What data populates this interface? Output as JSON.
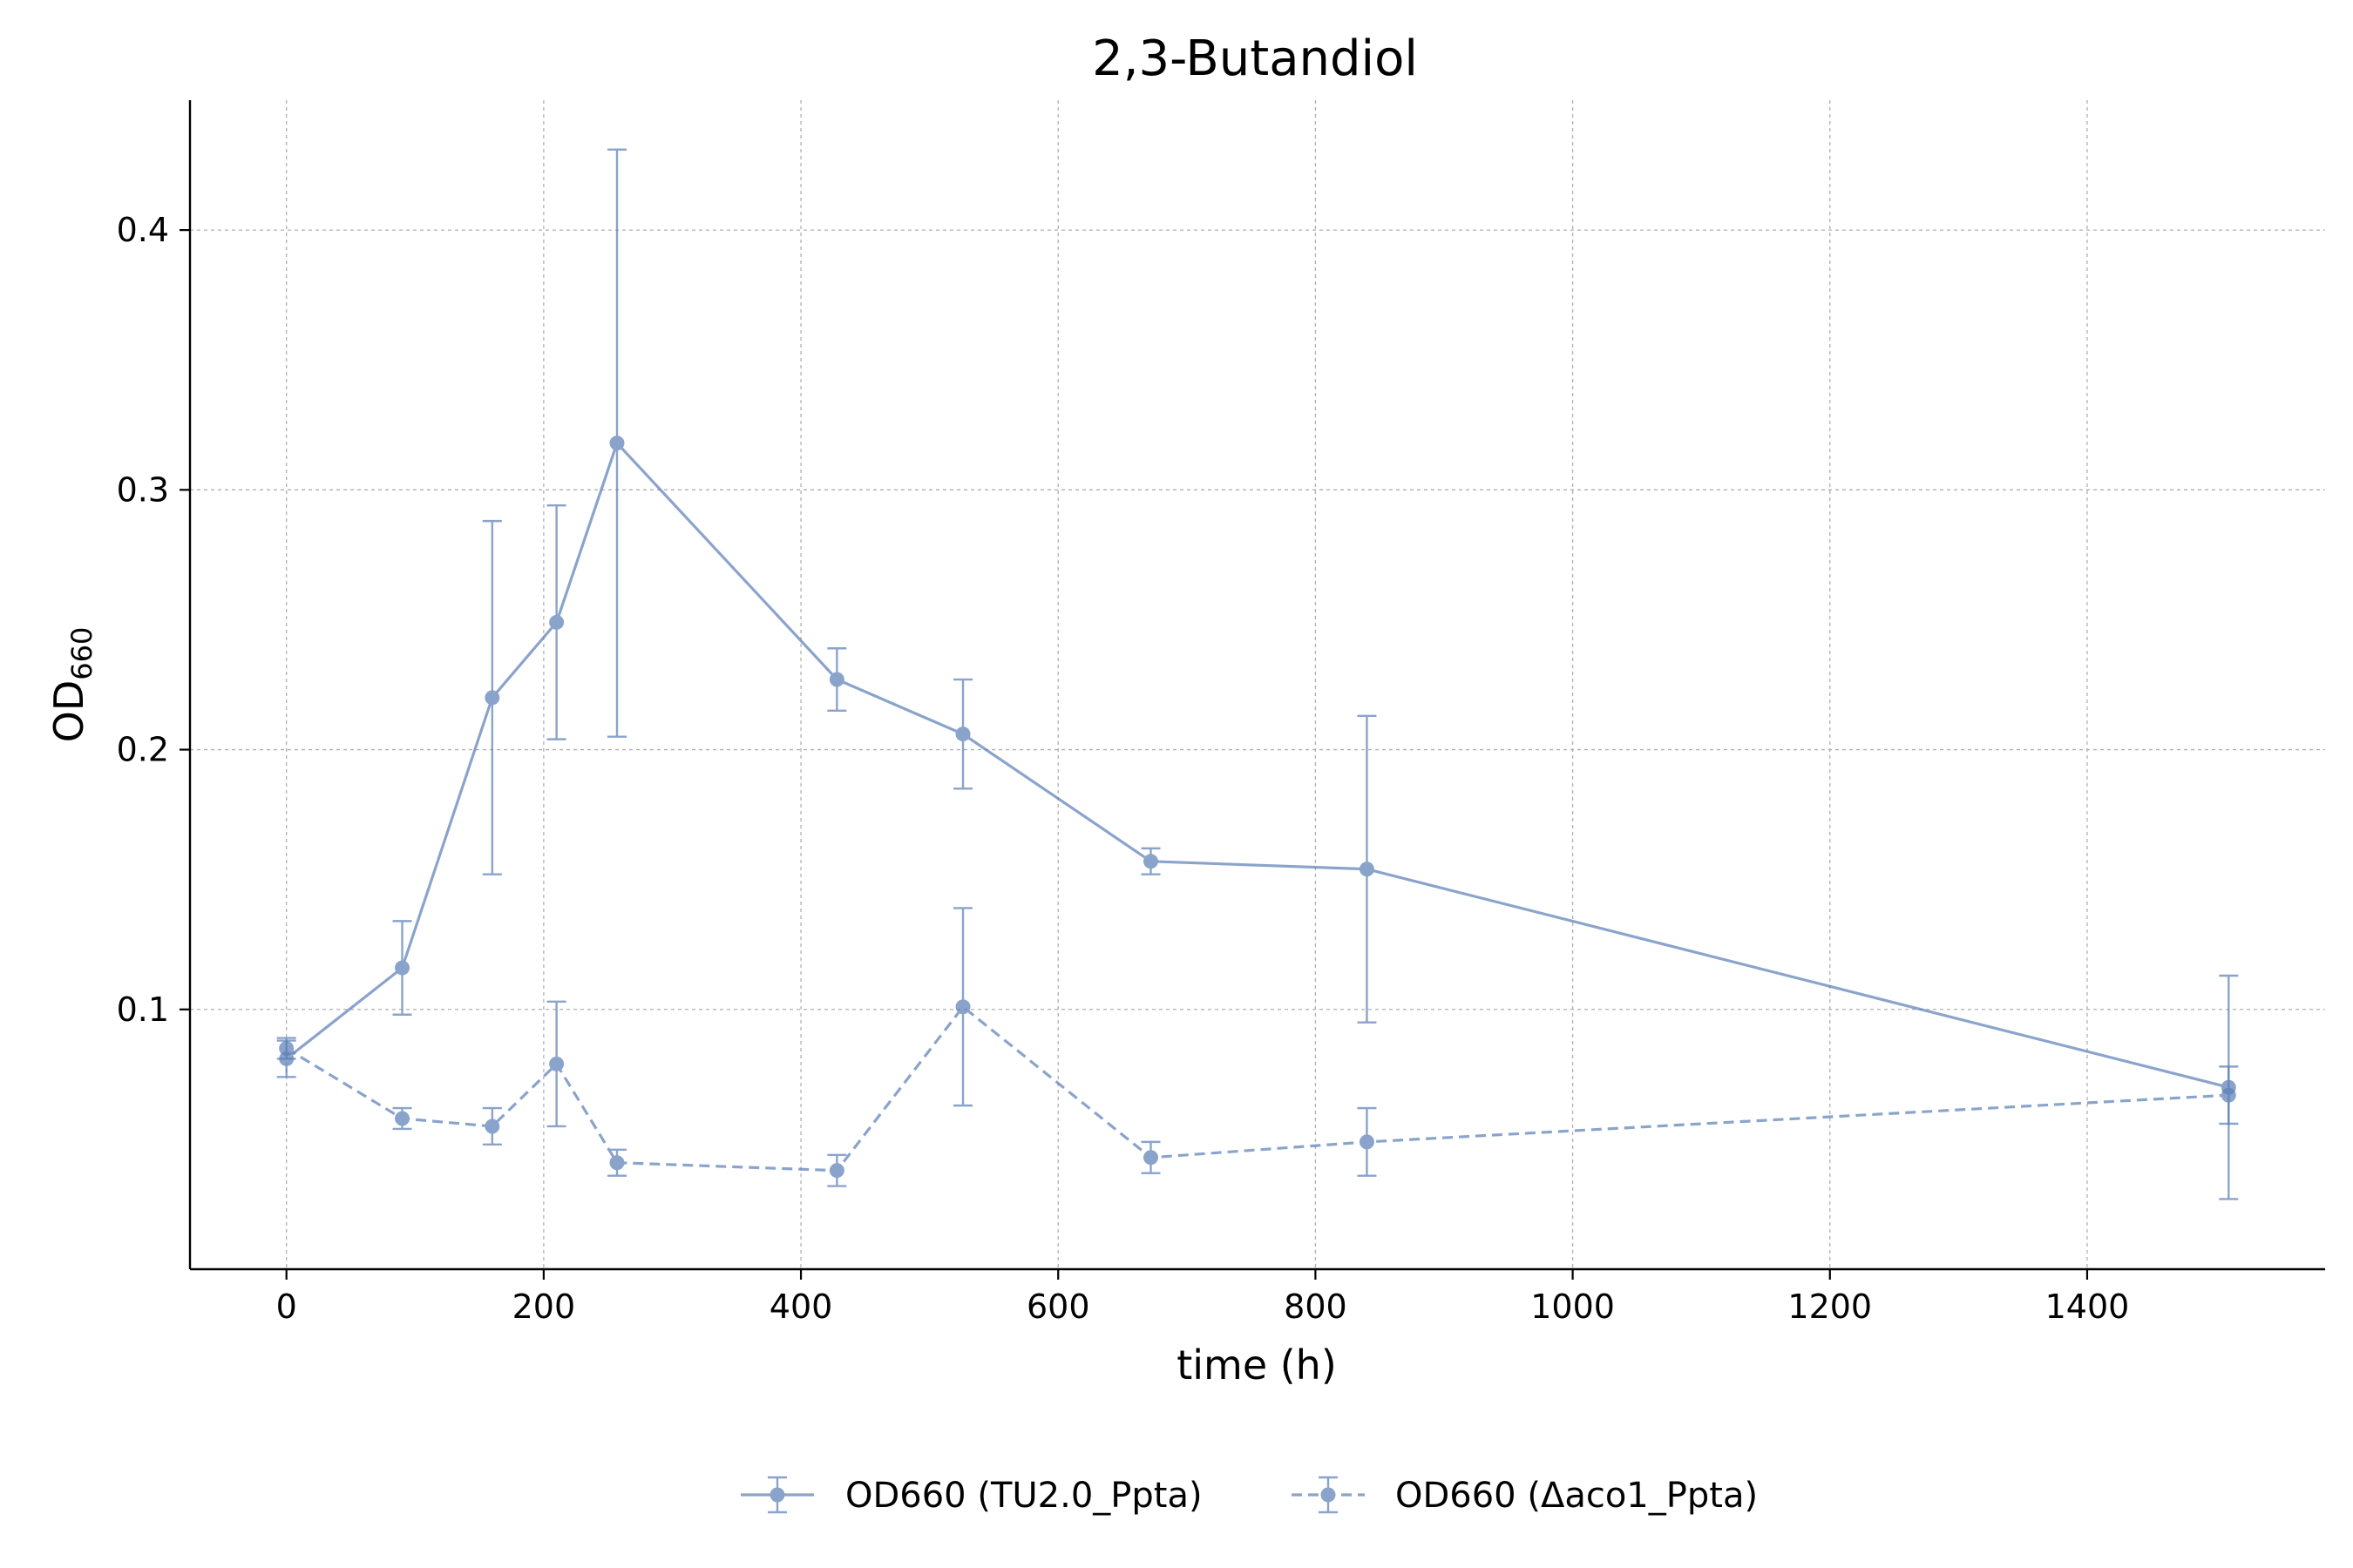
{
  "chart_data": {
    "type": "line",
    "title": "2,3-Butandiol",
    "xlabel": "time (h)",
    "ylabel": "OD",
    "ylabel_subscript": "660",
    "xlim": [
      -75,
      1585
    ],
    "ylim": [
      0.0,
      0.45
    ],
    "xticks": [
      0,
      200,
      400,
      600,
      800,
      1000,
      1200,
      1400
    ],
    "yticks": [
      0.1,
      0.2,
      0.3,
      0.4
    ],
    "xtick_labels": [
      "0",
      "200",
      "400",
      "600",
      "800",
      "1000",
      "1200",
      "1400"
    ],
    "ytick_labels": [
      "0.1",
      "0.2",
      "0.3",
      "0.4"
    ],
    "grid": true,
    "legend_position": "bottom-center",
    "series": [
      {
        "name": "OD660 (TU2.0_Ppta)",
        "color": "#5a7db6",
        "linestyle": "solid",
        "x": [
          0,
          90,
          160,
          210,
          257,
          428,
          526,
          672,
          840,
          1510
        ],
        "y": [
          0.081,
          0.116,
          0.22,
          0.249,
          0.318,
          0.227,
          0.206,
          0.157,
          0.154,
          0.07
        ],
        "err": [
          0.007,
          0.018,
          0.068,
          0.045,
          0.113,
          0.012,
          0.021,
          0.005,
          0.059,
          0.043
        ]
      },
      {
        "name": "OD660 (Δaco1_Ppta)",
        "color": "#5a7db6",
        "linestyle": "dashed",
        "x": [
          0,
          90,
          160,
          210,
          257,
          428,
          526,
          672,
          840,
          1510
        ],
        "y": [
          0.085,
          0.058,
          0.055,
          0.079,
          0.041,
          0.038,
          0.101,
          0.043,
          0.049,
          0.067
        ],
        "err": [
          0.004,
          0.004,
          0.007,
          0.024,
          0.005,
          0.006,
          0.038,
          0.006,
          0.013,
          0.011
        ]
      }
    ]
  }
}
